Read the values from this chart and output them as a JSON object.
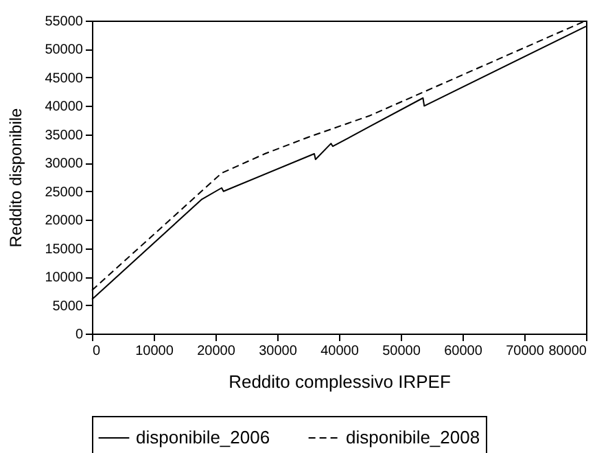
{
  "chart_data": {
    "type": "line",
    "xlabel": "Reddito complessivo IRPEF",
    "ylabel": "Reddito disponibile",
    "xlim": [
      0,
      80000
    ],
    "xticks": [
      0,
      10000,
      20000,
      30000,
      40000,
      50000,
      60000,
      70000,
      80000
    ],
    "ylim": [
      0,
      55000
    ],
    "yticks": [
      0,
      5000,
      10000,
      15000,
      20000,
      25000,
      30000,
      35000,
      40000,
      45000,
      50000,
      55000
    ],
    "grid": false,
    "legend": "bottom",
    "marker": "none",
    "series": [
      {
        "name": "disponibile_2006",
        "color": "#000000",
        "line_style": "solid",
        "x": [
          0,
          17800,
          21000,
          21300,
          36000,
          36200,
          38700,
          39000,
          45000,
          53600,
          53800,
          80000
        ],
        "values": [
          6000,
          23600,
          25600,
          25000,
          31600,
          30600,
          33400,
          32900,
          36400,
          41400,
          40000,
          54000
        ]
      },
      {
        "name": "disponibile_2008",
        "color": "#000000",
        "line_style": "dashed",
        "x": [
          0,
          21000,
          28000,
          35000,
          45000,
          80000
        ],
        "values": [
          7600,
          28200,
          31600,
          34500,
          38300,
          55000
        ]
      }
    ]
  }
}
